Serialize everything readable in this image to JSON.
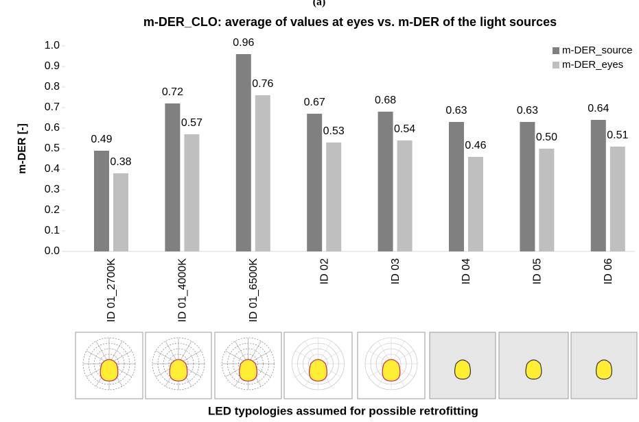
{
  "chart_data": {
    "type": "bar",
    "panel_label": "(a)",
    "title": "m-DER_CLO: average of values at eyes vs. m-DER of the light sources",
    "y_label": "m-DER  [-]",
    "x_label": "LED typologies assumed for possible retrofitting",
    "categories": [
      "ID 01_2700K",
      "ID 01_4000K",
      "ID 01_6500K",
      "ID 02",
      "ID 03",
      "ID 04",
      "ID 05",
      "ID 06"
    ],
    "series": [
      {
        "name": "m-DER_source",
        "color": "#808080",
        "label_color": "#595959",
        "values": [
          0.49,
          0.72,
          0.96,
          0.67,
          0.68,
          0.63,
          0.63,
          0.64
        ],
        "value_labels": [
          "0.49",
          "0.72",
          "0.96",
          "0.67",
          "0.68",
          "0.63",
          "0.63",
          "0.64"
        ]
      },
      {
        "name": "m-DER_eyes",
        "color": "#bfbfbf",
        "label_color": "#7f7f7f",
        "values": [
          0.38,
          0.57,
          0.76,
          0.53,
          0.54,
          0.46,
          0.5,
          0.51
        ],
        "value_labels": [
          "0.38",
          "0.57",
          "0.76",
          "0.53",
          "0.54",
          "0.46",
          "0.50",
          "0.51"
        ]
      }
    ],
    "ylim": [
      0,
      1
    ],
    "yticks": [
      {
        "value": 0,
        "label": "0.0"
      },
      0.1,
      0.2,
      0.3,
      0.4,
      0.5,
      0.6,
      0.7,
      0.8,
      0.9,
      {
        "value": 1,
        "label": "1.0"
      }
    ],
    "grid": false,
    "legend": "top-right"
  }
}
